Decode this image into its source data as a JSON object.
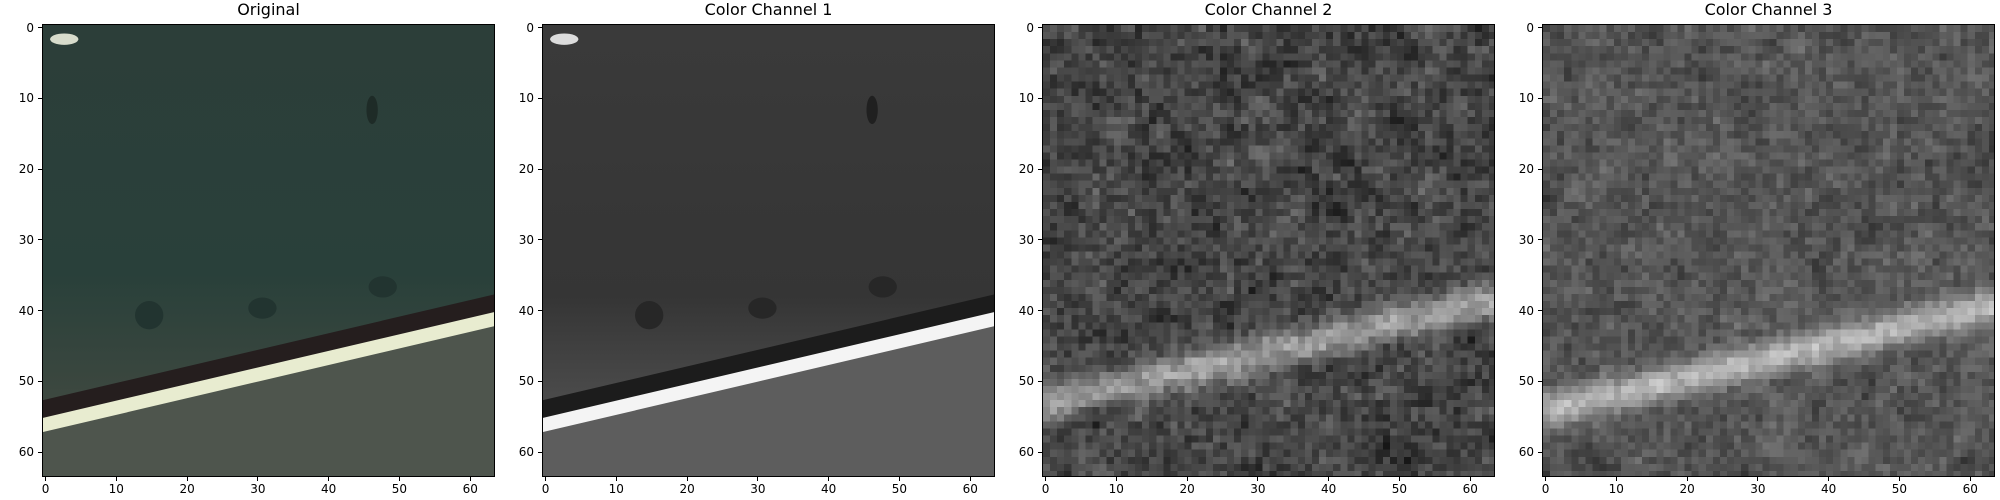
{
  "panels": [
    {
      "title": "Original",
      "kind": "original"
    },
    {
      "title": "Color Channel 1",
      "kind": "channel1"
    },
    {
      "title": "Color Channel 2",
      "kind": "channel2"
    },
    {
      "title": "Color Channel 3",
      "kind": "channel3"
    }
  ],
  "x_ticks": [
    "0",
    "10",
    "20",
    "30",
    "40",
    "50",
    "60"
  ],
  "y_ticks": [
    "0",
    "10",
    "20",
    "30",
    "40",
    "50",
    "60"
  ],
  "colors": {
    "original_top": "#2a3b36",
    "original_bottom": "#4c524a",
    "lane_line": "#e8ecd0",
    "channel_dark": "#1e1e1e",
    "channel_light": "#f2f2f2"
  }
}
